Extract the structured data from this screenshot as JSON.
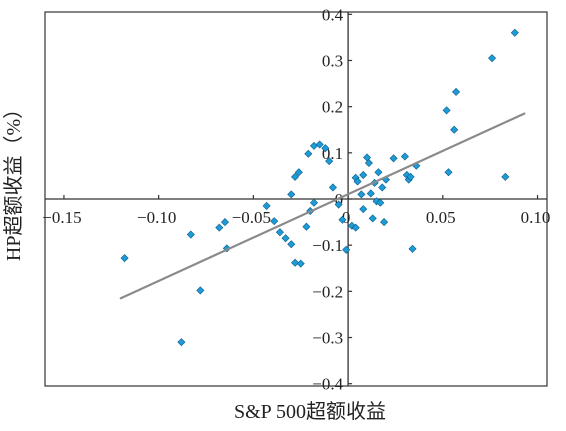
{
  "chart_data": {
    "type": "scatter",
    "xlabel": "S&P 500超额收益",
    "ylabel": "HP超额收益（%）",
    "xlim": [
      -0.16,
      0.105
    ],
    "ylim": [
      -0.405,
      0.405
    ],
    "x_ticks": [
      {
        "value": -0.15,
        "label": "−0.15"
      },
      {
        "value": -0.1,
        "label": "−0.10"
      },
      {
        "value": -0.05,
        "label": "−0.05"
      },
      {
        "value": 0,
        "label": "0"
      },
      {
        "value": 0.05,
        "label": "0.05"
      },
      {
        "value": 0.1,
        "label": "0.10"
      }
    ],
    "y_ticks": [
      {
        "value": 0.4,
        "label": "0.4"
      },
      {
        "value": 0.3,
        "label": "0.3"
      },
      {
        "value": 0.2,
        "label": "0.2"
      },
      {
        "value": 0.1,
        "label": "0.1"
      },
      {
        "value": 0,
        "label": "0"
      },
      {
        "value": -0.1,
        "label": "−0.1"
      },
      {
        "value": -0.2,
        "label": "−0.2"
      },
      {
        "value": -0.3,
        "label": "−0.3"
      },
      {
        "value": -0.4,
        "label": "−0.4"
      }
    ],
    "grid": false,
    "point_color": "#1e9bd7",
    "line_color": "#8a8a8a",
    "frame_color": "#333333",
    "regression_line": {
      "x": [
        -0.12,
        0.093
      ],
      "y": [
        -0.215,
        0.185
      ]
    },
    "points": [
      [
        -0.118,
        -0.128
      ],
      [
        -0.088,
        -0.31
      ],
      [
        -0.083,
        -0.077
      ],
      [
        -0.078,
        -0.198
      ],
      [
        -0.068,
        -0.062
      ],
      [
        -0.065,
        -0.05
      ],
      [
        -0.064,
        -0.107
      ],
      [
        -0.043,
        -0.015
      ],
      [
        -0.039,
        -0.048
      ],
      [
        -0.036,
        -0.072
      ],
      [
        -0.033,
        -0.085
      ],
      [
        -0.03,
        -0.098
      ],
      [
        -0.028,
        -0.138
      ],
      [
        -0.025,
        -0.14
      ],
      [
        -0.022,
        -0.06
      ],
      [
        -0.02,
        -0.026
      ],
      [
        -0.018,
        -0.008
      ],
      [
        -0.03,
        0.01
      ],
      [
        -0.028,
        0.048
      ],
      [
        -0.026,
        0.058
      ],
      [
        -0.021,
        0.098
      ],
      [
        -0.018,
        0.115
      ],
      [
        -0.015,
        0.118
      ],
      [
        -0.012,
        0.11
      ],
      [
        -0.01,
        0.082
      ],
      [
        -0.008,
        0.025
      ],
      [
        -0.005,
        -0.012
      ],
      [
        -0.003,
        -0.045
      ],
      [
        -0.001,
        -0.11
      ],
      [
        0.002,
        -0.058
      ],
      [
        0.004,
        -0.062
      ],
      [
        0.004,
        0.046
      ],
      [
        0.005,
        0.038
      ],
      [
        0.007,
        0.01
      ],
      [
        0.008,
        -0.022
      ],
      [
        0.008,
        0.052
      ],
      [
        0.01,
        0.09
      ],
      [
        0.011,
        0.078
      ],
      [
        0.012,
        0.012
      ],
      [
        0.013,
        -0.042
      ],
      [
        0.014,
        0.035
      ],
      [
        0.015,
        -0.005
      ],
      [
        0.016,
        0.058
      ],
      [
        0.017,
        -0.008
      ],
      [
        0.018,
        0.025
      ],
      [
        0.019,
        -0.05
      ],
      [
        0.02,
        0.042
      ],
      [
        0.024,
        0.088
      ],
      [
        0.03,
        0.092
      ],
      [
        0.031,
        0.052
      ],
      [
        0.032,
        0.042
      ],
      [
        0.033,
        0.048
      ],
      [
        0.034,
        -0.108
      ],
      [
        0.036,
        0.072
      ],
      [
        0.052,
        0.192
      ],
      [
        0.053,
        0.058
      ],
      [
        0.056,
        0.15
      ],
      [
        0.057,
        0.232
      ],
      [
        0.076,
        0.305
      ],
      [
        0.083,
        0.048
      ],
      [
        0.088,
        0.36
      ]
    ]
  }
}
